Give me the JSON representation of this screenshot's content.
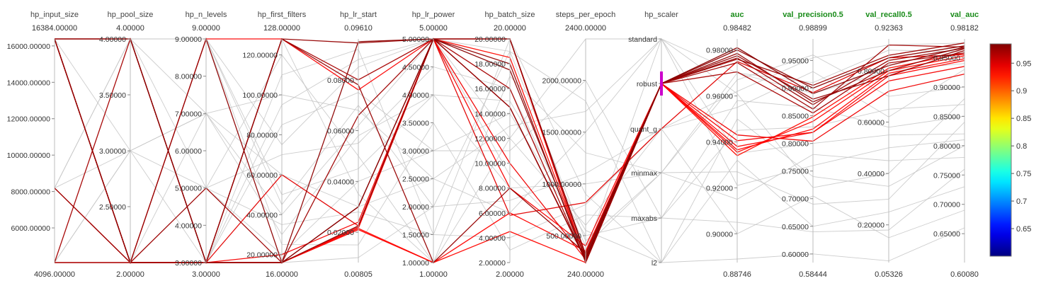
{
  "chart_data": {
    "type": "parallel_coordinates",
    "axes": [
      {
        "name": "hp_input_size",
        "top_label": "16384.00000",
        "bottom_label": "4096.00000",
        "min": 4096,
        "max": 16384,
        "ticks": [
          6000,
          8000,
          10000,
          12000,
          14000,
          16000
        ],
        "tick_labels": [
          "6000.00000",
          "8000.00000",
          "10000.00000",
          "12000.00000",
          "14000.00000",
          "16000.00000"
        ],
        "tick_side": "left",
        "color": "#444444",
        "bold": false
      },
      {
        "name": "hp_pool_size",
        "top_label": "4.00000",
        "bottom_label": "2.00000",
        "min": 2,
        "max": 4,
        "ticks": [
          2.5,
          3,
          3.5,
          4
        ],
        "tick_labels": [
          "2.50000",
          "3.00000",
          "3.50000",
          "4.00000"
        ],
        "tick_side": "left",
        "color": "#444444",
        "bold": false
      },
      {
        "name": "hp_n_levels",
        "top_label": "9.00000",
        "bottom_label": "3.00000",
        "min": 3,
        "max": 9,
        "ticks": [
          3,
          4,
          5,
          6,
          7,
          8,
          9
        ],
        "tick_labels": [
          "3.00000",
          "4.00000",
          "5.00000",
          "6.00000",
          "7.00000",
          "8.00000",
          "9.00000"
        ],
        "tick_side": "left",
        "color": "#444444",
        "bold": false
      },
      {
        "name": "hp_first_filters",
        "top_label": "128.00000",
        "bottom_label": "16.00000",
        "min": 16,
        "max": 128,
        "ticks": [
          20,
          40,
          60,
          80,
          100,
          120
        ],
        "tick_labels": [
          "20.00000",
          "40.00000",
          "60.00000",
          "80.00000",
          "100.00000",
          "120.00000"
        ],
        "tick_side": "left",
        "color": "#444444",
        "bold": false
      },
      {
        "name": "hp_lr_start",
        "top_label": "0.09610",
        "bottom_label": "0.00805",
        "min": 0.00805,
        "max": 0.0961,
        "ticks": [
          0.02,
          0.04,
          0.06,
          0.08
        ],
        "tick_labels": [
          "0.02000",
          "0.04000",
          "0.06000",
          "0.08000"
        ],
        "tick_side": "left",
        "color": "#444444",
        "bold": false
      },
      {
        "name": "hp_lr_power",
        "top_label": "5.00000",
        "bottom_label": "1.00000",
        "min": 1,
        "max": 5,
        "ticks": [
          1,
          1.5,
          2,
          2.5,
          3,
          3.5,
          4,
          4.5,
          5
        ],
        "tick_labels": [
          "1.00000",
          "1.50000",
          "2.00000",
          "2.50000",
          "3.00000",
          "3.50000",
          "4.00000",
          "4.50000",
          "5.00000"
        ],
        "tick_side": "left",
        "color": "#444444",
        "bold": false
      },
      {
        "name": "hp_batch_size",
        "top_label": "20.00000",
        "bottom_label": "2.00000",
        "min": 2,
        "max": 20,
        "ticks": [
          2,
          4,
          6,
          8,
          10,
          12,
          14,
          16,
          18,
          20
        ],
        "tick_labels": [
          "2.00000",
          "4.00000",
          "6.00000",
          "8.00000",
          "10.00000",
          "12.00000",
          "14.00000",
          "16.00000",
          "18.00000",
          "20.00000"
        ],
        "tick_side": "left",
        "color": "#444444",
        "bold": false
      },
      {
        "name": "steps_per_epoch",
        "top_label": "2400.00000",
        "bottom_label": "240.00000",
        "min": 240,
        "max": 2400,
        "ticks": [
          500,
          1000,
          1500,
          2000
        ],
        "tick_labels": [
          "500.00000",
          "1000.00000",
          "1500.00000",
          "2000.00000"
        ],
        "tick_side": "left",
        "color": "#444444",
        "bold": false
      },
      {
        "name": "hp_scaler",
        "top_label": "",
        "bottom_label": "",
        "categorical": true,
        "categories": [
          "standard",
          "robust",
          "quant_g",
          "minmax",
          "maxabs",
          "l2"
        ],
        "tick_side": "left",
        "color": "#444444",
        "bold": false
      },
      {
        "name": "auc",
        "top_label": "0.98482",
        "bottom_label": "0.88746",
        "min": 0.88746,
        "max": 0.98482,
        "ticks": [
          0.9,
          0.92,
          0.94,
          0.96,
          0.98
        ],
        "tick_labels": [
          "0.90000",
          "0.92000",
          "0.94000",
          "0.96000",
          "0.98000"
        ],
        "tick_side": "left",
        "color": "#1a8c1a",
        "bold": true
      },
      {
        "name": "val_precision0.5",
        "top_label": "0.98899",
        "bottom_label": "0.58444",
        "min": 0.58444,
        "max": 0.98899,
        "ticks": [
          0.6,
          0.65,
          0.7,
          0.75,
          0.8,
          0.85,
          0.9,
          0.95
        ],
        "tick_labels": [
          "0.60000",
          "0.65000",
          "0.70000",
          "0.75000",
          "0.80000",
          "0.85000",
          "0.90000",
          "0.95000"
        ],
        "tick_side": "left",
        "color": "#1a8c1a",
        "bold": true
      },
      {
        "name": "val_recall0.5",
        "top_label": "0.92363",
        "bottom_label": "0.05326",
        "min": 0.05326,
        "max": 0.92363,
        "ticks": [
          0.2,
          0.4,
          0.6,
          0.8
        ],
        "tick_labels": [
          "0.20000",
          "0.40000",
          "0.60000",
          "0.80000"
        ],
        "tick_side": "left",
        "color": "#1a8c1a",
        "bold": true
      },
      {
        "name": "val_auc",
        "top_label": "0.98182",
        "bottom_label": "0.60080",
        "min": 0.6008,
        "max": 0.98182,
        "ticks": [
          0.65,
          0.7,
          0.75,
          0.8,
          0.85,
          0.9,
          0.95
        ],
        "tick_labels": [
          "0.65000",
          "0.70000",
          "0.75000",
          "0.80000",
          "0.85000",
          "0.90000",
          "0.95000"
        ],
        "tick_side": "left",
        "color": "#1a8c1a",
        "bold": true
      }
    ],
    "colorbar": {
      "min": 0.6,
      "max": 0.985,
      "ticks": [
        0.65,
        0.7,
        0.75,
        0.8,
        0.85,
        0.9,
        0.95
      ],
      "tick_labels": [
        "0.65",
        "0.7",
        "0.75",
        "0.8",
        "0.85",
        "0.9",
        "0.95"
      ],
      "colormap": "jet"
    },
    "highlight": {
      "axis": "hp_scaler",
      "category": "robust",
      "color": "#cc00cc"
    },
    "series": [
      {
        "values": [
          4096,
          2,
          3,
          16,
          0.0225,
          5,
          18,
          240,
          "robust",
          0.9785,
          0.875,
          0.8,
          0.965
        ],
        "auc": 0.978
      },
      {
        "values": [
          16384,
          4,
          3,
          16,
          0.03,
          5,
          17.5,
          280,
          "robust",
          0.981,
          0.89,
          0.82,
          0.968
        ],
        "auc": 0.982
      },
      {
        "values": [
          16384,
          2,
          9,
          16,
          0.095,
          5,
          20,
          300,
          "robust",
          0.98,
          0.9,
          0.85,
          0.97
        ],
        "auc": 0.98
      },
      {
        "values": [
          8192,
          2,
          3,
          128,
          0.0945,
          5,
          14.5,
          270,
          "robust",
          0.9775,
          0.88,
          0.78,
          0.962
        ],
        "auc": 0.977
      },
      {
        "values": [
          16384,
          2,
          3,
          128,
          0.078,
          1,
          8,
          330,
          "robust",
          0.9765,
          0.87,
          0.84,
          0.966
        ],
        "auc": 0.976
      },
      {
        "values": [
          16384,
          4,
          3,
          16,
          0.03,
          5,
          14.5,
          260,
          "robust",
          0.976,
          0.905,
          0.86,
          0.975
        ],
        "auc": 0.975
      },
      {
        "values": [
          16384,
          2,
          5,
          16,
          0.066,
          5,
          20,
          320,
          "robust",
          0.9745,
          0.862,
          0.9,
          0.968
        ],
        "auc": 0.973
      },
      {
        "values": [
          4096,
          4,
          3,
          128,
          0.08,
          5,
          16,
          250,
          "robust",
          0.9705,
          0.855,
          0.83,
          0.958
        ],
        "auc": 0.97
      },
      {
        "values": [
          16384,
          2,
          3,
          16,
          0.022,
          5,
          10,
          270,
          "robust",
          0.943,
          0.804,
          0.72,
          0.922
        ],
        "auc": 0.943
      },
      {
        "values": [
          4096,
          2,
          3,
          20,
          0.024,
          5,
          8,
          400,
          "robust",
          0.9405,
          0.82,
          0.76,
          0.935
        ],
        "auc": 0.94
      },
      {
        "values": [
          16384,
          2,
          9,
          128,
          0.076,
          5,
          20,
          260,
          "robust",
          0.938,
          0.82,
          0.78,
          0.945
        ],
        "auc": 0.938
      },
      {
        "values": [
          8192,
          2,
          3,
          16,
          0.021,
          1,
          6,
          350,
          "robust",
          0.9365,
          0.826,
          0.79,
          0.948
        ],
        "auc": 0.936
      },
      {
        "values": [
          16384,
          4,
          3,
          16,
          0.0215,
          1,
          4.5,
          240,
          "robust",
          0.9355,
          0.84,
          0.8,
          0.953
        ],
        "auc": 0.935
      },
      {
        "values": [
          4096,
          2,
          3,
          16,
          0.0215,
          5,
          18.5,
          280,
          "robust",
          0.934,
          0.848,
          0.81,
          0.958
        ],
        "auc": 0.934
      },
      {
        "values": [
          16384,
          2,
          3,
          60,
          0.0225,
          5,
          5.8,
          820,
          "quant_g",
          0.975,
          0.892,
          0.85,
          0.955
        ],
        "auc": 0.948
      },
      {
        "values": [
          4096,
          2,
          5,
          120,
          0.05,
          1,
          12,
          2400,
          "standard",
          0.961,
          0.72,
          0.4,
          0.88
        ],
        "auc": null
      },
      {
        "values": [
          8192,
          3,
          7,
          30,
          0.058,
          4,
          8,
          1000,
          "minmax",
          0.927,
          0.69,
          0.3,
          0.84
        ],
        "auc": null
      },
      {
        "values": [
          16384,
          4,
          5,
          20,
          0.04,
          3,
          14,
          500,
          "maxabs",
          0.905,
          0.64,
          0.18,
          0.76
        ],
        "auc": null
      },
      {
        "values": [
          4096,
          2,
          9,
          45,
          0.07,
          2,
          19,
          1800,
          "l2",
          0.889,
          0.6,
          0.06,
          0.66
        ],
        "auc": null
      },
      {
        "values": [
          8192,
          4,
          3,
          95,
          0.088,
          5,
          12,
          600,
          "quant_g",
          0.955,
          0.93,
          0.62,
          0.93
        ],
        "auc": null
      },
      {
        "values": [
          16384,
          2,
          7,
          60,
          0.03,
          2.5,
          6,
          1500,
          "standard",
          0.921,
          0.76,
          0.5,
          0.81
        ],
        "auc": null
      },
      {
        "values": [
          4096,
          3,
          5,
          70,
          0.055,
          4.5,
          16,
          400,
          "minmax",
          0.967,
          0.96,
          0.7,
          0.9
        ],
        "auc": null
      },
      {
        "values": [
          8192,
          2,
          9,
          25,
          0.015,
          3.5,
          3,
          700,
          "maxabs",
          0.945,
          0.83,
          0.65,
          0.87
        ],
        "auc": null
      },
      {
        "values": [
          16384,
          4,
          3,
          110,
          0.092,
          1.5,
          20,
          900,
          "l2",
          0.932,
          0.65,
          0.25,
          0.73
        ],
        "auc": null
      },
      {
        "values": [
          4096,
          4,
          7,
          40,
          0.062,
          5,
          9,
          350,
          "standard",
          0.97,
          0.91,
          0.88,
          0.96
        ],
        "auc": null
      },
      {
        "values": [
          8192,
          2,
          5,
          16,
          0.01,
          2,
          7,
          1100,
          "quant_g",
          0.9,
          0.705,
          0.15,
          0.69
        ],
        "auc": null
      },
      {
        "values": [
          16384,
          3,
          3,
          128,
          0.035,
          1,
          17,
          1300,
          "minmax",
          0.915,
          0.78,
          0.45,
          0.78
        ],
        "auc": null
      },
      {
        "values": [
          4096,
          2,
          3,
          85,
          0.075,
          3,
          11,
          2000,
          "maxabs",
          0.958,
          0.865,
          0.58,
          0.85
        ],
        "auc": null
      },
      {
        "values": [
          8192,
          4,
          9,
          50,
          0.045,
          4,
          15,
          550,
          "l2",
          0.95,
          0.74,
          0.35,
          0.8
        ],
        "auc": null
      },
      {
        "values": [
          16384,
          2,
          5,
          35,
          0.028,
          1.5,
          4,
          800,
          "quant_g",
          0.962,
          0.955,
          0.9,
          0.975
        ],
        "auc": null
      },
      {
        "values": [
          4096,
          3,
          7,
          100,
          0.068,
          2.5,
          13,
          1700,
          "standard",
          0.935,
          0.8,
          0.55,
          0.82
        ],
        "auc": null
      },
      {
        "values": [
          16384,
          4,
          9,
          75,
          0.085,
          5,
          19,
          450,
          "minmax",
          0.97,
          0.89,
          0.8,
          0.94
        ],
        "auc": null
      }
    ]
  }
}
